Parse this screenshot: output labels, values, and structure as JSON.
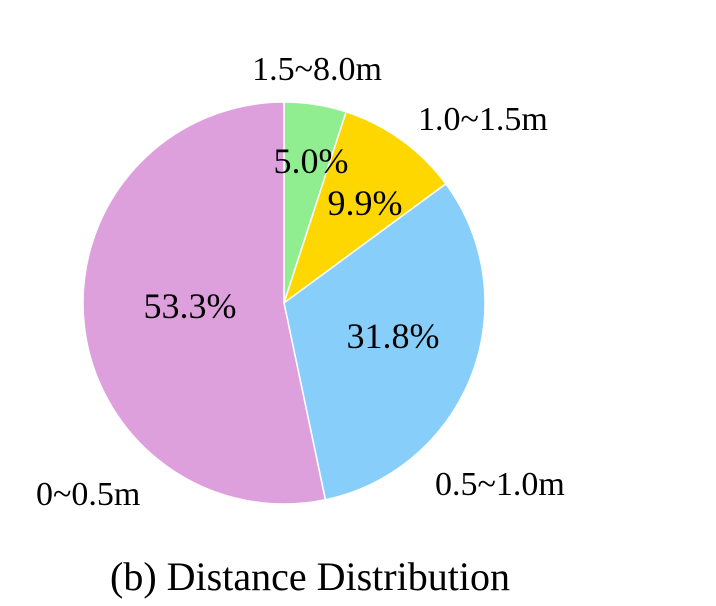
{
  "chart_data": {
    "type": "pie",
    "title": "",
    "caption": "(b) Distance Distribution",
    "slices": [
      {
        "label": "1.5~8.0m",
        "value": 5.0,
        "value_label": "5.0%",
        "color": "#90EE90"
      },
      {
        "label": "1.0~1.5m",
        "value": 9.9,
        "value_label": "9.9%",
        "color": "#FFD700"
      },
      {
        "label": "0.5~1.0m",
        "value": 31.8,
        "value_label": "31.8%",
        "color": "#87CEFA"
      },
      {
        "label": "0~0.5m",
        "value": 53.3,
        "value_label": "53.3%",
        "color": "#DDA0DD"
      }
    ],
    "start": "top",
    "direction": "clockwise",
    "legend": "none"
  }
}
